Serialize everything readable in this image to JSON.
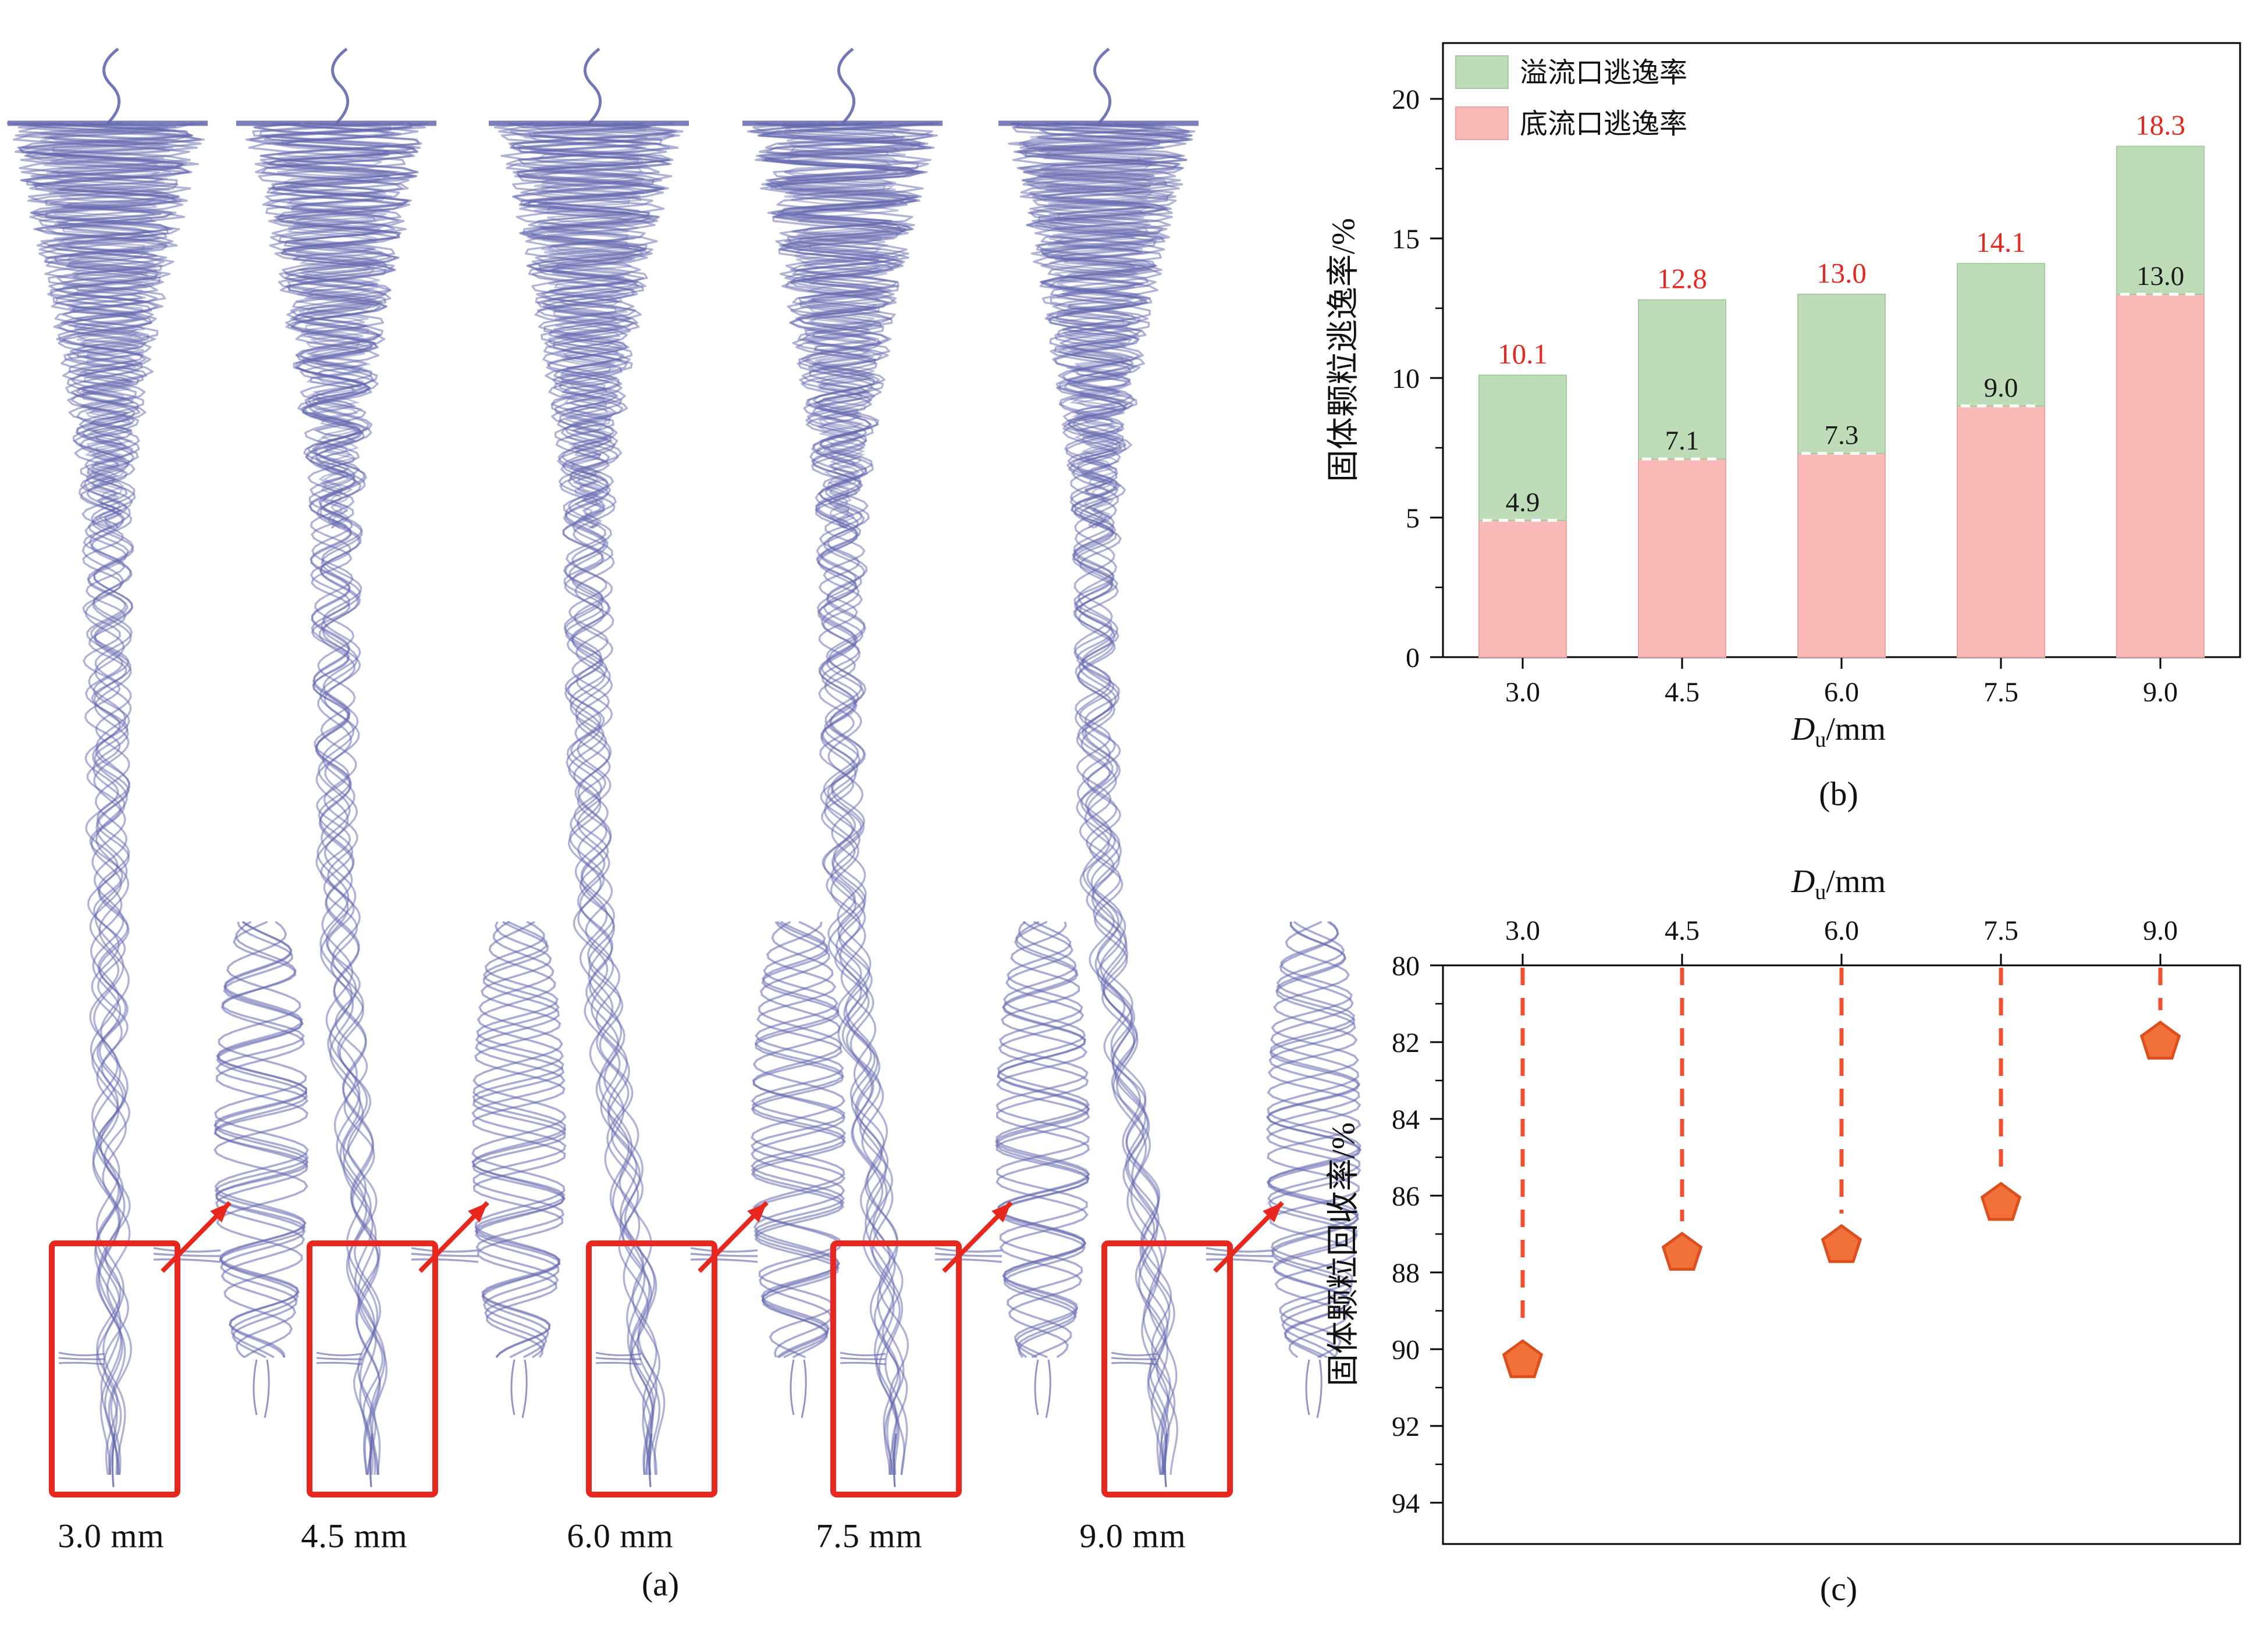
{
  "panel_labels": {
    "a": "(a)",
    "b": "(b)",
    "c": "(c)"
  },
  "panel_a": {
    "items": [
      {
        "label": "3.0 mm"
      },
      {
        "label": "4.5 mm"
      },
      {
        "label": "6.0 mm"
      },
      {
        "label": "7.5 mm"
      },
      {
        "label": "9.0 mm"
      }
    ],
    "trace_color": "#6468ae",
    "highlight_color": "#e8281e"
  },
  "chart_data": [
    {
      "id": "solid-particle-escape-rate",
      "type": "bar",
      "stacked": true,
      "categories": [
        "3.0",
        "4.5",
        "6.0",
        "7.5",
        "9.0"
      ],
      "series": [
        {
          "name": "底流口逃逸率",
          "color": "#f9bab7",
          "edge": "#eda3a0",
          "values": [
            4.9,
            7.1,
            7.3,
            9.0,
            13.0
          ]
        },
        {
          "name": "溢流口逃逸率",
          "color": "#bedcb8",
          "edge": "#a6cba0",
          "values": [
            5.2,
            5.7,
            5.7,
            5.1,
            5.3
          ]
        }
      ],
      "totals": [
        10.1,
        12.8,
        13.0,
        14.1,
        18.3
      ],
      "total_labels": [
        "10.1",
        "12.8",
        "13.0",
        "14.1",
        "18.3"
      ],
      "segment_labels": [
        "4.9",
        "7.1",
        "7.3",
        "9.0",
        "13.0"
      ],
      "total_label_color": "#e8281e",
      "segment_label_color": "#1a1a1a",
      "xlabel": {
        "symbol": "D",
        "sub": "u",
        "rest": "/mm"
      },
      "ylabel": "固体颗粒逃逸率/%",
      "ylim": [
        0,
        22
      ],
      "yticks": [
        0,
        5,
        10,
        15,
        20
      ],
      "legend": [
        {
          "label": "溢流口逃逸率",
          "color": "#bedcb8",
          "edge": "#a6cba0"
        },
        {
          "label": "底流口逃逸率",
          "color": "#f9bab7",
          "edge": "#eda3a0"
        }
      ],
      "legend_position": "top-left"
    },
    {
      "id": "solid-particle-recovery-rate",
      "type": "scatter",
      "x": [
        3.0,
        4.5,
        6.0,
        7.5,
        9.0
      ],
      "x_tick_labels": [
        "3.0",
        "4.5",
        "6.0",
        "7.5",
        "9.0"
      ],
      "values": [
        90.3,
        87.5,
        87.3,
        86.2,
        82.0
      ],
      "marker": "pentagon",
      "marker_color": "#f2703a",
      "marker_edge_color": "#dd4f1d",
      "stem_color": "#f05030",
      "stem_style": "dashed",
      "xlabel": {
        "symbol": "D",
        "sub": "u",
        "rest": "/mm"
      },
      "ylabel": "固体颗粒回收率/%",
      "y_axis_inverted": true,
      "x_axis_position": "top",
      "ylim": [
        80,
        95.1
      ],
      "yticks": [
        80,
        82,
        84,
        86,
        88,
        90,
        92,
        94
      ]
    }
  ]
}
